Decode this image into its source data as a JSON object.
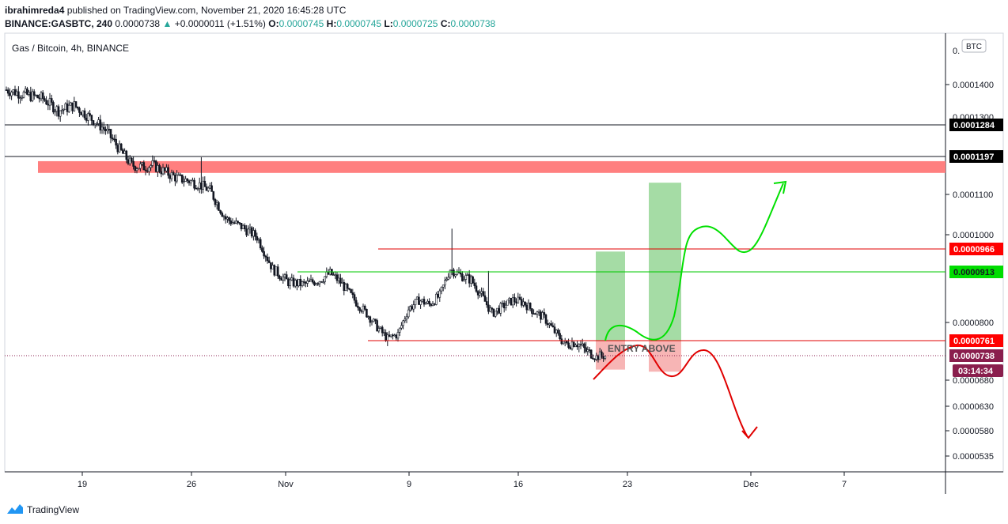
{
  "header": {
    "author": "ibrahimreda4",
    "published_text": "published on TradingView.com, November 21, 2020 16:45:28 UTC",
    "symbol_line": "BINANCE:GASBTC, 240",
    "last_price": "0.0000738",
    "change": "+0.0000011 (+1.51%)",
    "o_label": "O:",
    "o_value": "0.0000745",
    "h_label": "H:",
    "h_value": "0.0000745",
    "l_label": "L:",
    "l_value": "0.0000725",
    "c_label": "C:",
    "c_value": "0.0000738"
  },
  "chart_data": {
    "type": "candlestick",
    "title": "Gas / Bitcoin, 4h, BINANCE",
    "currency_badge": "BTC",
    "x_ticks": [
      "19",
      "26",
      "Nov",
      "9",
      "16",
      "23",
      "Dec",
      "7"
    ],
    "y_ticks": [
      "0.0001400",
      "0.0001100",
      "0.0001000",
      "0.0000800",
      "0.0000680",
      "0.0000630",
      "0.0000580",
      "0.0000535"
    ],
    "y_top_partial_label": "0.",
    "hidden_tick_fragment": "0.0001300",
    "price_path": [
      [
        0,
        0.0001385
      ],
      [
        4,
        0.000137
      ],
      [
        7,
        0.000136
      ],
      [
        10,
        0.0001325
      ],
      [
        13,
        0.000134
      ],
      [
        16,
        0.0001305
      ],
      [
        19,
        0.000127
      ],
      [
        22,
        0.000121
      ],
      [
        24,
        0.0001175
      ],
      [
        26,
        0.000117
      ],
      [
        28,
        0.0001175
      ],
      [
        30,
        0.000116
      ],
      [
        33,
        0.000114
      ],
      [
        35,
        0.0001135
      ],
      [
        37,
        0.0001125
      ],
      [
        39,
        0.000111
      ],
      [
        42,
        0.000104
      ],
      [
        45,
        0.000102
      ],
      [
        48,
        9.95e-05
      ],
      [
        51,
        9.2e-05
      ],
      [
        54,
        8.9e-05
      ],
      [
        57,
        8.85e-05
      ],
      [
        60,
        8.95e-05
      ],
      [
        62,
        9.1e-05
      ],
      [
        64,
        8.9e-05
      ],
      [
        67,
        8.45e-05
      ],
      [
        69,
        8.2e-05
      ],
      [
        71,
        7.9e-05
      ],
      [
        73,
        7.65e-05
      ],
      [
        75,
        7.75e-05
      ],
      [
        77,
        8.3e-05
      ],
      [
        79,
        8.5e-05
      ],
      [
        81,
        8.4e-05
      ],
      [
        83,
        8.6e-05
      ],
      [
        85,
        9.2e-05
      ],
      [
        87,
        9.05e-05
      ],
      [
        89,
        8.95e-05
      ],
      [
        91,
        8.6e-05
      ],
      [
        93,
        8.2e-05
      ],
      [
        95,
        8.35e-05
      ],
      [
        97,
        8.5e-05
      ],
      [
        99,
        8.45e-05
      ],
      [
        101,
        8.25e-05
      ],
      [
        103,
        8.1e-05
      ],
      [
        105,
        7.8e-05
      ],
      [
        107,
        7.55e-05
      ],
      [
        109,
        7.6e-05
      ],
      [
        111,
        7.45e-05
      ],
      [
        113,
        7.35e-05
      ],
      [
        115,
        7.38e-05
      ]
    ],
    "spikes": [
      {
        "i": 37,
        "high": 0.0001195
      },
      {
        "i": 85,
        "high": 0.0001015
      },
      {
        "i": 92,
        "high": 9.15e-05
      }
    ],
    "resistance_zone": {
      "low": 0.0001155,
      "high": 0.0001185,
      "color": "#ff7f7f"
    },
    "levels": [
      {
        "value": 0.0001284,
        "label": "0.0001284",
        "color": "#131722",
        "style": "black"
      },
      {
        "value": 0.0001197,
        "label": "0.0001197",
        "color": "#131722",
        "style": "black"
      },
      {
        "value": 9.66e-05,
        "label": "0.0000966",
        "color": "#e00000",
        "style": "red"
      },
      {
        "value": 9.13e-05,
        "label": "0.0000913",
        "color": "#00c800",
        "style": "green"
      },
      {
        "value": 7.61e-05,
        "label": "0.0000761",
        "color": "#e00000",
        "style": "red"
      },
      {
        "value": 7.38e-05,
        "label": "0.0000738",
        "color": "#8a1e4d",
        "style": "current"
      }
    ],
    "countdown": "03:14:34",
    "annotation": "ENTRY ABOVE",
    "colors": {
      "green": "#00e000",
      "red": "#e00000",
      "green_box": "#a5dca5",
      "red_box": "#f7b5b5"
    }
  },
  "footer": {
    "brand": "TradingView"
  }
}
